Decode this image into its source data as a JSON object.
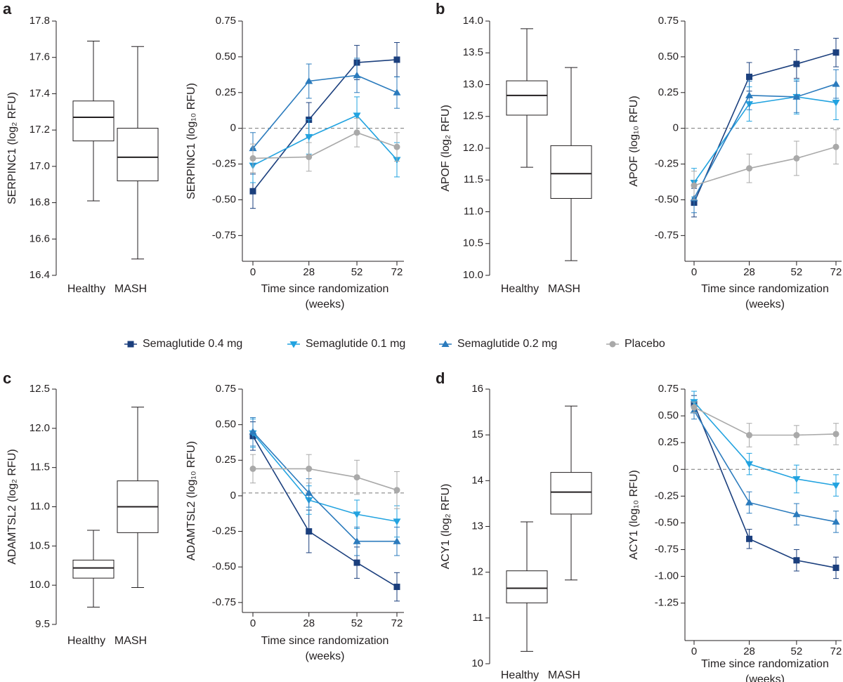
{
  "panel_labels": [
    "a",
    "b",
    "c",
    "d"
  ],
  "legend": [
    {
      "name": "Semaglutide 0.4 mg",
      "color": "#1b3f7d",
      "marker": "square"
    },
    {
      "name": "Semaglutide 0.1 mg",
      "color": "#22a3e0",
      "marker": "triangle-down"
    },
    {
      "name": "Semaglutide 0.2 mg",
      "color": "#2b7bbd",
      "marker": "triangle-up"
    },
    {
      "name": "Placebo",
      "color": "#a9a9a9",
      "marker": "circle"
    }
  ],
  "chart_data": [
    {
      "type": "box",
      "ylabel": "SERPINC1 (log₂ RFU)",
      "categories": [
        "Healthy",
        "MASH"
      ],
      "boxes": [
        {
          "whislo": 16.81,
          "q1": 17.14,
          "med": 17.27,
          "q3": 17.36,
          "whishi": 17.69
        },
        {
          "whislo": 16.49,
          "q1": 16.92,
          "med": 17.05,
          "q3": 17.21,
          "whishi": 17.66
        }
      ],
      "ylim": [
        16.4,
        17.8
      ],
      "yticks": [
        16.4,
        16.6,
        16.8,
        {
          "value": 17,
          "label": "17.0"
        },
        17.2,
        17.4,
        17.6,
        17.8
      ]
    },
    {
      "type": "line",
      "ylabel": "SERPINC1 (log₁₀ RFU)",
      "xlabel": [
        "Time since randomization",
        "(weeks)"
      ],
      "x": [
        0,
        28,
        52,
        72
      ],
      "xlim": [
        0,
        72
      ],
      "xticks": [
        0,
        28,
        52,
        72
      ],
      "ylim": [
        -0.93,
        0.75
      ],
      "yticks": [
        -0.75,
        {
          "value": -0.5,
          "label": "-0.50"
        },
        -0.25,
        0,
        0.25,
        {
          "value": 0.5,
          "label": "0.50"
        },
        0.75
      ],
      "refline": 0,
      "series": [
        {
          "values": [
            -0.44,
            0.06,
            0.46,
            0.48
          ],
          "errors": [
            0.12,
            0.12,
            0.12,
            0.12
          ]
        },
        {
          "values": [
            -0.26,
            -0.06,
            0.09,
            -0.22
          ],
          "errors": [
            0.12,
            0.12,
            0.13,
            0.12
          ]
        },
        {
          "values": [
            -0.14,
            0.33,
            0.37,
            0.25
          ],
          "errors": [
            0.11,
            0.12,
            0.12,
            0.11
          ]
        },
        {
          "values": [
            -0.21,
            -0.2,
            -0.03,
            -0.13
          ],
          "errors": [
            0.1,
            0.1,
            0.1,
            0.1
          ]
        }
      ]
    },
    {
      "type": "box",
      "ylabel": "APOF (log₂ RFU)",
      "categories": [
        "Healthy",
        "MASH"
      ],
      "boxes": [
        {
          "whislo": 11.7,
          "q1": 12.52,
          "med": 12.83,
          "q3": 13.06,
          "whishi": 13.88
        },
        {
          "whislo": 10.23,
          "q1": 11.21,
          "med": 11.6,
          "q3": 12.04,
          "whishi": 13.27
        }
      ],
      "ylim": [
        10,
        14
      ],
      "yticks": [
        {
          "value": 10,
          "label": "10.0"
        },
        10.5,
        {
          "value": 11,
          "label": "11.0"
        },
        11.5,
        {
          "value": 12,
          "label": "12.0"
        },
        12.5,
        {
          "value": 13,
          "label": "13.0"
        },
        13.5,
        {
          "value": 14,
          "label": "14.0"
        }
      ]
    },
    {
      "type": "line",
      "ylabel": "APOF (log₁₀ RFU)",
      "xlabel": [
        "Time since randomization",
        "(weeks)"
      ],
      "x": [
        0,
        28,
        52,
        72
      ],
      "xlim": [
        0,
        72
      ],
      "xticks": [
        0,
        28,
        52,
        72
      ],
      "ylim": [
        -0.93,
        0.75
      ],
      "yticks": [
        -0.75,
        {
          "value": -0.5,
          "label": "-0.50"
        },
        -0.25,
        0,
        0.25,
        {
          "value": 0.5,
          "label": "0.50"
        },
        0.75
      ],
      "refline": 0,
      "series": [
        {
          "values": [
            -0.52,
            0.36,
            0.45,
            0.53
          ],
          "errors": [
            0.1,
            0.1,
            0.1,
            0.1
          ]
        },
        {
          "values": [
            -0.38,
            0.17,
            0.22,
            0.18
          ],
          "errors": [
            0.1,
            0.12,
            0.12,
            0.12
          ]
        },
        {
          "values": [
            -0.49,
            0.23,
            0.22,
            0.31
          ],
          "errors": [
            0.1,
            0.1,
            0.11,
            0.1
          ]
        },
        {
          "values": [
            -0.4,
            -0.28,
            -0.21,
            -0.13
          ],
          "errors": [
            0.1,
            0.1,
            0.12,
            0.12
          ]
        }
      ]
    },
    {
      "type": "box",
      "ylabel": "ADAMTSL2 (log₂ RFU)",
      "categories": [
        "Healthy",
        "MASH"
      ],
      "boxes": [
        {
          "whislo": 9.72,
          "q1": 10.09,
          "med": 10.22,
          "q3": 10.32,
          "whishi": 10.7
        },
        {
          "whislo": 9.97,
          "q1": 10.67,
          "med": 11.0,
          "q3": 11.33,
          "whishi": 12.27
        }
      ],
      "ylim": [
        9.5,
        12.5
      ],
      "yticks": [
        9.5,
        {
          "value": 10,
          "label": "10.0"
        },
        10.5,
        {
          "value": 11,
          "label": "11.0"
        },
        11.5,
        {
          "value": 12,
          "label": "12.0"
        },
        12.5
      ]
    },
    {
      "type": "line",
      "ylabel": "ADAMTSL2 (log₁₀ RFU)",
      "xlabel": [
        "Time since randomization",
        "(weeks)"
      ],
      "x": [
        0,
        28,
        52,
        72
      ],
      "xlim": [
        0,
        72
      ],
      "xticks": [
        0,
        28,
        52,
        72
      ],
      "ylim": [
        -0.82,
        0.75
      ],
      "yticks": [
        -0.75,
        {
          "value": -0.5,
          "label": "-0.50"
        },
        -0.25,
        0,
        0.25,
        {
          "value": 0.5,
          "label": "0.50"
        },
        0.75
      ],
      "refline": 0.02,
      "series": [
        {
          "values": [
            0.42,
            -0.25,
            -0.47,
            -0.64
          ],
          "errors": [
            0.1,
            0.15,
            0.11,
            0.1
          ]
        },
        {
          "values": [
            0.44,
            -0.03,
            -0.13,
            -0.18
          ],
          "errors": [
            0.1,
            0.1,
            0.1,
            0.11
          ]
        },
        {
          "values": [
            0.45,
            0.02,
            -0.32,
            -0.32
          ],
          "errors": [
            0.1,
            0.1,
            0.1,
            0.1
          ]
        },
        {
          "values": [
            0.19,
            0.19,
            0.13,
            0.04
          ],
          "errors": [
            0.1,
            0.1,
            0.12,
            0.13
          ]
        }
      ]
    },
    {
      "type": "box",
      "ylabel": "ACY1 (log₂ RFU)",
      "categories": [
        "Healthy",
        "MASH"
      ],
      "boxes": [
        {
          "whislo": 10.27,
          "q1": 11.33,
          "med": 11.65,
          "q3": 12.03,
          "whishi": 13.1
        },
        {
          "whislo": 11.83,
          "q1": 13.27,
          "med": 13.75,
          "q3": 14.18,
          "whishi": 15.63
        }
      ],
      "ylim": [
        10,
        16
      ],
      "yticks": [
        10,
        11,
        12,
        13,
        14,
        15,
        16
      ]
    },
    {
      "type": "line",
      "ylabel": "ACY1 (log₁₀ RFU)",
      "xlabel": [
        "Time since randomization",
        "(weeks)"
      ],
      "x": [
        0,
        28,
        52,
        72
      ],
      "xlim": [
        0,
        72
      ],
      "xticks": [
        0,
        28,
        52,
        72
      ],
      "ylim": [
        -1.6,
        0.75
      ],
      "yticks": [
        -1.25,
        {
          "value": -1,
          "label": "-1.00"
        },
        -0.75,
        {
          "value": -0.5,
          "label": "-0.50"
        },
        -0.25,
        0,
        0.25,
        {
          "value": 0.5,
          "label": "0.50"
        },
        0.75
      ],
      "refline": 0,
      "series": [
        {
          "values": [
            0.61,
            -0.65,
            -0.85,
            -0.92
          ],
          "errors": [
            0.08,
            0.09,
            0.1,
            0.1
          ]
        },
        {
          "values": [
            0.63,
            0.05,
            -0.09,
            -0.15
          ],
          "errors": [
            0.1,
            0.1,
            0.13,
            0.1
          ]
        },
        {
          "values": [
            0.55,
            -0.31,
            -0.42,
            -0.49
          ],
          "errors": [
            0.08,
            0.1,
            0.1,
            0.1
          ]
        },
        {
          "values": [
            0.58,
            0.32,
            0.32,
            0.33
          ],
          "errors": [
            0.05,
            0.11,
            0.09,
            0.1
          ]
        }
      ]
    }
  ]
}
